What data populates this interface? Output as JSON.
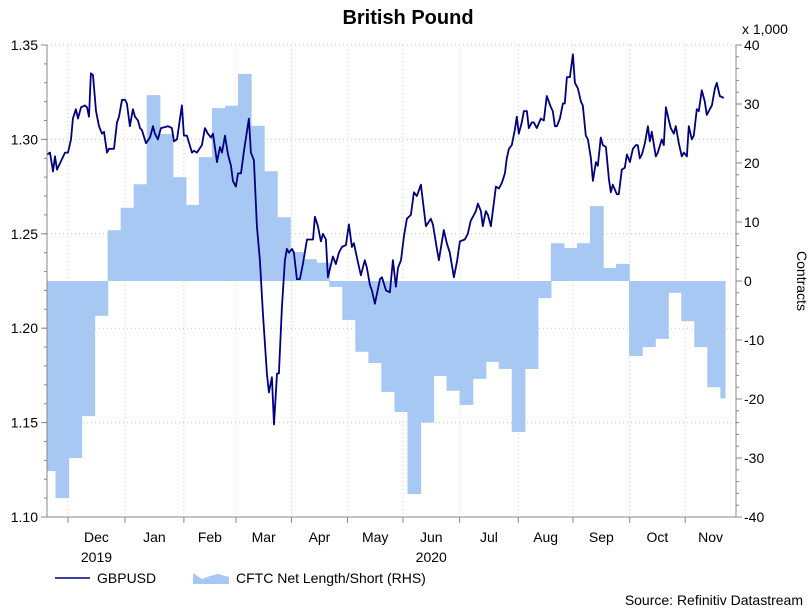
{
  "chart_data": {
    "type": "line+bar",
    "title": "British Pound",
    "x_unit": "weeks from start of Dec 2019",
    "xlim": [
      -0.65,
      52.2
    ],
    "months": [
      {
        "label": "Dec",
        "start": 0.96
      },
      {
        "label": "Jan",
        "start": 5.33
      },
      {
        "label": "Feb",
        "start": 9.85
      },
      {
        "label": "Mar",
        "start": 13.84
      },
      {
        "label": "Apr",
        "start": 18.1
      },
      {
        "label": "May",
        "start": 22.4
      },
      {
        "label": "Jun",
        "start": 26.65
      },
      {
        "label": "Jul",
        "start": 31.0
      },
      {
        "label": "Aug",
        "start": 35.5
      },
      {
        "label": "Sep",
        "start": 39.7
      },
      {
        "label": "Oct",
        "start": 44.05
      },
      {
        "label": "Nov",
        "start": 48.3
      }
    ],
    "month_end": 52.2,
    "years": [
      {
        "label": "2019",
        "month": "Dec"
      },
      {
        "label": "2020",
        "month": "Jun"
      }
    ],
    "left_axis": {
      "ylim": [
        1.1,
        1.35
      ],
      "ticks": [
        "1.35",
        "1.30",
        "1.25",
        "1.20",
        "1.15",
        "1.10"
      ]
    },
    "right_axis": {
      "ylim": [
        -40,
        40
      ],
      "ticks": [
        "40",
        "30",
        "20",
        "10",
        "0",
        "-10",
        "-20",
        "-30",
        "-40"
      ],
      "label": "Contracts",
      "multiplier": "x 1,000"
    },
    "grid": true,
    "legend_position": "bottom-left",
    "series": [
      {
        "name": "GBPUSD",
        "type": "line",
        "axis": "left",
        "color": "#000080",
        "points": [
          [
            -0.65,
            1.292
          ],
          [
            -0.42,
            1.293
          ],
          [
            -0.19,
            1.283
          ],
          [
            -0.04,
            1.291
          ],
          [
            0.12,
            1.284
          ],
          [
            0.73,
            1.293
          ],
          [
            0.96,
            1.293
          ],
          [
            1.19,
            1.3
          ],
          [
            1.34,
            1.311
          ],
          [
            1.57,
            1.316
          ],
          [
            1.73,
            1.311
          ],
          [
            1.96,
            1.317
          ],
          [
            2.26,
            1.318
          ],
          [
            2.42,
            1.317
          ],
          [
            2.57,
            1.312
          ],
          [
            2.72,
            1.335
          ],
          [
            2.88,
            1.334
          ],
          [
            3.11,
            1.315
          ],
          [
            3.34,
            1.307
          ],
          [
            3.57,
            1.303
          ],
          [
            3.72,
            1.304
          ],
          [
            3.95,
            1.293
          ],
          [
            4.1,
            1.295
          ],
          [
            4.49,
            1.295
          ],
          [
            4.72,
            1.309
          ],
          [
            4.87,
            1.312
          ],
          [
            5.1,
            1.321
          ],
          [
            5.33,
            1.321
          ],
          [
            5.48,
            1.319
          ],
          [
            5.71,
            1.307
          ],
          [
            5.94,
            1.316
          ],
          [
            6.1,
            1.312
          ],
          [
            6.33,
            1.31
          ],
          [
            6.48,
            1.306
          ],
          [
            6.63,
            1.305
          ],
          [
            6.94,
            1.298
          ],
          [
            7.25,
            1.301
          ],
          [
            7.48,
            1.307
          ],
          [
            7.63,
            1.303
          ],
          [
            7.86,
            1.3
          ],
          [
            8.09,
            1.306
          ],
          [
            8.63,
            1.307
          ],
          [
            8.93,
            1.306
          ],
          [
            9.09,
            1.299
          ],
          [
            9.32,
            1.3
          ],
          [
            9.7,
            1.318
          ],
          [
            9.85,
            1.302
          ],
          [
            10.08,
            1.302
          ],
          [
            10.47,
            1.293
          ],
          [
            10.62,
            1.294
          ],
          [
            10.85,
            1.293
          ],
          [
            11.23,
            1.297
          ],
          [
            11.46,
            1.306
          ],
          [
            11.69,
            1.303
          ],
          [
            11.93,
            1.301
          ],
          [
            12.08,
            1.303
          ],
          [
            12.39,
            1.288
          ],
          [
            12.62,
            1.296
          ],
          [
            12.77,
            1.293
          ],
          [
            13.0,
            1.302
          ],
          [
            13.23,
            1.292
          ],
          [
            13.46,
            1.286
          ],
          [
            13.61,
            1.278
          ],
          [
            13.84,
            1.275
          ],
          [
            14.0,
            1.282
          ],
          [
            14.23,
            1.282
          ],
          [
            14.46,
            1.294
          ],
          [
            14.84,
            1.311
          ],
          [
            14.99,
            1.293
          ],
          [
            15.22,
            1.289
          ],
          [
            15.45,
            1.254
          ],
          [
            15.68,
            1.236
          ],
          [
            15.91,
            1.208
          ],
          [
            16.22,
            1.176
          ],
          [
            16.37,
            1.166
          ],
          [
            16.6,
            1.174
          ],
          [
            16.76,
            1.149
          ],
          [
            16.99,
            1.176
          ],
          [
            17.14,
            1.176
          ],
          [
            17.37,
            1.211
          ],
          [
            17.6,
            1.236
          ],
          [
            17.75,
            1.242
          ],
          [
            17.91,
            1.24
          ],
          [
            18.14,
            1.242
          ],
          [
            18.29,
            1.24
          ],
          [
            18.52,
            1.226
          ],
          [
            18.75,
            1.226
          ],
          [
            18.98,
            1.234
          ],
          [
            19.29,
            1.247
          ],
          [
            19.75,
            1.247
          ],
          [
            19.9,
            1.259
          ],
          [
            20.13,
            1.254
          ],
          [
            20.36,
            1.246
          ],
          [
            20.51,
            1.25
          ],
          [
            20.74,
            1.247
          ],
          [
            20.9,
            1.227
          ],
          [
            21.28,
            1.238
          ],
          [
            21.51,
            1.234
          ],
          [
            21.74,
            1.24
          ],
          [
            21.97,
            1.243
          ],
          [
            22.28,
            1.244
          ],
          [
            22.51,
            1.255
          ],
          [
            22.74,
            1.243
          ],
          [
            22.89,
            1.245
          ],
          [
            23.2,
            1.235
          ],
          [
            23.43,
            1.228
          ],
          [
            23.73,
            1.236
          ],
          [
            23.89,
            1.232
          ],
          [
            24.12,
            1.223
          ],
          [
            24.27,
            1.22
          ],
          [
            24.5,
            1.213
          ],
          [
            24.89,
            1.226
          ],
          [
            25.04,
            1.227
          ],
          [
            25.35,
            1.22
          ],
          [
            25.65,
            1.219
          ],
          [
            25.88,
            1.236
          ],
          [
            26.11,
            1.222
          ],
          [
            26.27,
            1.232
          ],
          [
            26.5,
            1.236
          ],
          [
            26.73,
            1.249
          ],
          [
            26.96,
            1.258
          ],
          [
            27.26,
            1.26
          ],
          [
            27.49,
            1.272
          ],
          [
            27.72,
            1.27
          ],
          [
            28.03,
            1.276
          ],
          [
            28.41,
            1.254
          ],
          [
            28.79,
            1.258
          ],
          [
            28.95,
            1.255
          ],
          [
            29.26,
            1.242
          ],
          [
            29.41,
            1.236
          ],
          [
            29.79,
            1.252
          ],
          [
            30.02,
            1.245
          ],
          [
            30.25,
            1.24
          ],
          [
            30.56,
            1.227
          ],
          [
            30.79,
            1.235
          ],
          [
            31.02,
            1.246
          ],
          [
            31.4,
            1.247
          ],
          [
            31.63,
            1.25
          ],
          [
            31.86,
            1.257
          ],
          [
            32.02,
            1.259
          ],
          [
            32.25,
            1.262
          ],
          [
            32.4,
            1.266
          ],
          [
            32.63,
            1.262
          ],
          [
            32.78,
            1.254
          ],
          [
            33.01,
            1.262
          ],
          [
            33.17,
            1.26
          ],
          [
            33.4,
            1.254
          ],
          [
            33.78,
            1.275
          ],
          [
            34.01,
            1.274
          ],
          [
            34.24,
            1.277
          ],
          [
            34.47,
            1.282
          ],
          [
            34.62,
            1.29
          ],
          [
            34.78,
            1.295
          ],
          [
            35.0,
            1.297
          ],
          [
            35.23,
            1.305
          ],
          [
            35.39,
            1.312
          ],
          [
            35.54,
            1.303
          ],
          [
            35.77,
            1.309
          ],
          [
            35.93,
            1.315
          ],
          [
            36.16,
            1.315
          ],
          [
            36.31,
            1.306
          ],
          [
            36.54,
            1.309
          ],
          [
            36.69,
            1.309
          ],
          [
            36.92,
            1.306
          ],
          [
            37.23,
            1.311
          ],
          [
            37.46,
            1.31
          ],
          [
            37.69,
            1.323
          ],
          [
            38.0,
            1.317
          ],
          [
            38.15,
            1.315
          ],
          [
            38.31,
            1.307
          ],
          [
            38.46,
            1.307
          ],
          [
            38.69,
            1.311
          ],
          [
            38.92,
            1.319
          ],
          [
            39.07,
            1.319
          ],
          [
            39.23,
            1.333
          ],
          [
            39.46,
            1.333
          ],
          [
            39.69,
            1.345
          ],
          [
            39.84,
            1.33
          ],
          [
            40.07,
            1.327
          ],
          [
            40.3,
            1.32
          ],
          [
            40.45,
            1.318
          ],
          [
            40.68,
            1.302
          ],
          [
            40.84,
            1.3
          ],
          [
            41.07,
            1.29
          ],
          [
            41.22,
            1.278
          ],
          [
            41.45,
            1.288
          ],
          [
            41.6,
            1.286
          ],
          [
            41.83,
            1.301
          ],
          [
            41.99,
            1.297
          ],
          [
            42.22,
            1.296
          ],
          [
            42.45,
            1.279
          ],
          [
            42.6,
            1.272
          ],
          [
            42.75,
            1.276
          ],
          [
            43.06,
            1.271
          ],
          [
            43.21,
            1.271
          ],
          [
            43.44,
            1.284
          ],
          [
            43.67,
            1.285
          ],
          [
            43.83,
            1.292
          ],
          [
            44.06,
            1.288
          ],
          [
            44.29,
            1.295
          ],
          [
            44.52,
            1.297
          ],
          [
            44.67,
            1.297
          ],
          [
            44.82,
            1.29
          ],
          [
            44.98,
            1.292
          ],
          [
            45.21,
            1.298
          ],
          [
            45.44,
            1.307
          ],
          [
            45.59,
            1.299
          ],
          [
            45.74,
            1.304
          ],
          [
            46.05,
            1.291
          ],
          [
            46.2,
            1.293
          ],
          [
            46.51,
            1.3
          ],
          [
            46.66,
            1.297
          ],
          [
            46.82,
            1.317
          ],
          [
            47.05,
            1.31
          ],
          [
            47.2,
            1.306
          ],
          [
            47.43,
            1.303
          ],
          [
            47.58,
            1.307
          ],
          [
            47.81,
            1.298
          ],
          [
            48.04,
            1.291
          ],
          [
            48.2,
            1.293
          ],
          [
            48.43,
            1.291
          ],
          [
            48.58,
            1.307
          ],
          [
            48.81,
            1.3
          ],
          [
            48.96,
            1.302
          ],
          [
            49.19,
            1.316
          ],
          [
            49.35,
            1.315
          ],
          [
            49.58,
            1.326
          ],
          [
            49.81,
            1.32
          ],
          [
            49.96,
            1.313
          ],
          [
            50.19,
            1.316
          ],
          [
            50.35,
            1.318
          ],
          [
            50.58,
            1.327
          ],
          [
            50.73,
            1.33
          ],
          [
            50.96,
            1.323
          ],
          [
            51.27,
            1.322
          ]
        ]
      },
      {
        "name": "CFTC Net Length/Short (RHS)",
        "type": "step-area",
        "axis": "right",
        "color": "#a6c8f2",
        "first_week_start": -0.65,
        "last_week_end": 51.35,
        "weekly_values": [
          -32.2,
          -36.8,
          -30,
          -22.9,
          -5.9,
          8.6,
          12.4,
          16.4,
          31.5,
          24.9,
          17.6,
          12.9,
          21,
          29.3,
          29.7,
          35.1,
          26.3,
          18.6,
          10.8,
          4.9,
          3.7,
          3.1,
          -1,
          -6.6,
          -12,
          -13.9,
          -18.8,
          -22.2,
          -36.1,
          -24,
          -16.1,
          -18.6,
          -21,
          -16.6,
          -13.7,
          -14.9,
          -25.6,
          -14.9,
          -2.9,
          6.4,
          5.6,
          6.4,
          12.7,
          2.2,
          2.9,
          -12.7,
          -11.2,
          -9.8,
          -2,
          -6.8,
          -11.2,
          -18,
          -19.9
        ]
      }
    ],
    "source": "Source: Refinitiv Datastream"
  }
}
